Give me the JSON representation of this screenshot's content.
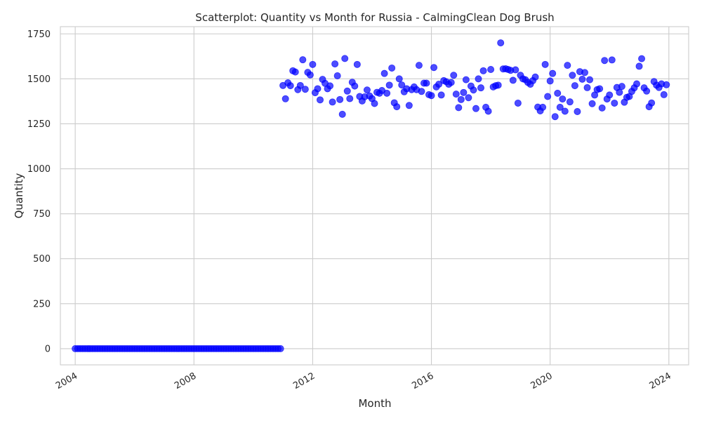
{
  "chart_data": {
    "type": "scatter",
    "title": "Scatterplot: Quantity vs Month for Russia - CalmingClean Dog Brush",
    "xlabel": "Month",
    "ylabel": "Quantity",
    "x_axis": "date",
    "xlim": [
      "2003-07-01",
      "2024-09-01"
    ],
    "ylim": [
      -90,
      1790
    ],
    "x_ticks": [
      "2004",
      "2008",
      "2012",
      "2016",
      "2020",
      "2024"
    ],
    "y_ticks": [
      "0",
      "250",
      "500",
      "750",
      "1000",
      "1250",
      "1500",
      "1750"
    ],
    "grid": true,
    "legend": false,
    "marker_color": "#0000ff",
    "marker_alpha": 0.7,
    "series": [
      {
        "x_start": "2004-01",
        "x_step": "1 month",
        "values": [
          0,
          0,
          0,
          0,
          0,
          0,
          0,
          0,
          0,
          0,
          0,
          0,
          0,
          0,
          0,
          0,
          0,
          0,
          0,
          0,
          0,
          0,
          0,
          0,
          0,
          0,
          0,
          0,
          0,
          0,
          0,
          0,
          0,
          0,
          0,
          0,
          0,
          0,
          0,
          0,
          0,
          0,
          0,
          0,
          0,
          0,
          0,
          0,
          0,
          0,
          0,
          0,
          0,
          0,
          0,
          0,
          0,
          0,
          0,
          0,
          0,
          0,
          0,
          0,
          0,
          0,
          0,
          0,
          0,
          0,
          0,
          0,
          0,
          0,
          0,
          0,
          0,
          0,
          0,
          0,
          0,
          0,
          0,
          0,
          1463,
          1389,
          1478,
          1462,
          1545,
          1538,
          1440,
          1463,
          1606,
          1442,
          1536,
          1522,
          1580,
          1423,
          1445,
          1383,
          1497,
          1475,
          1445,
          1461,
          1371,
          1583,
          1517,
          1385,
          1303,
          1613,
          1432,
          1390,
          1481,
          1460,
          1580,
          1402,
          1377,
          1400,
          1438,
          1405,
          1390,
          1363,
          1425,
          1420,
          1435,
          1530,
          1420,
          1465,
          1560,
          1367,
          1345,
          1500,
          1466,
          1428,
          1445,
          1352,
          1440,
          1455,
          1440,
          1575,
          1430,
          1476,
          1476,
          1412,
          1407,
          1563,
          1455,
          1470,
          1410,
          1490,
          1484,
          1470,
          1480,
          1520,
          1415,
          1340,
          1385,
          1424,
          1495,
          1395,
          1460,
          1438,
          1335,
          1500,
          1450,
          1545,
          1342,
          1320,
          1552,
          1455,
          1462,
          1465,
          1700,
          1555,
          1556,
          1552,
          1547,
          1492,
          1550,
          1365,
          1520,
          1500,
          1495,
          1480,
          1470,
          1490,
          1510,
          1343,
          1322,
          1342,
          1580,
          1402,
          1488,
          1530,
          1290,
          1420,
          1342,
          1388,
          1320,
          1575,
          1372,
          1520,
          1462,
          1318,
          1540,
          1498,
          1535,
          1451,
          1495,
          1362,
          1410,
          1440,
          1445,
          1338,
          1602,
          1388,
          1410,
          1605,
          1365,
          1452,
          1425,
          1458,
          1370,
          1397,
          1402,
          1430,
          1450,
          1472,
          1570,
          1612,
          1450,
          1432,
          1345,
          1366,
          1485,
          1465,
          1452,
          1472,
          1412,
          1467
        ]
      }
    ]
  }
}
